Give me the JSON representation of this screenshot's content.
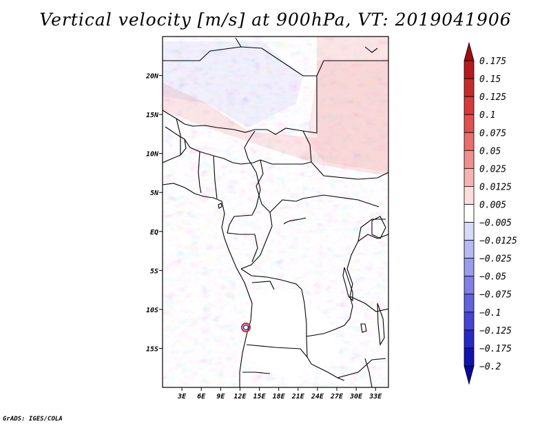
{
  "title": "Vertical velocity [m/s] at 900hPa, VT: 2019041906",
  "credit": "GrADS: IGES/COLA",
  "chart_data": {
    "type": "heatmap",
    "title": "Vertical velocity [m/s] at 900hPa, VT: 2019041906",
    "variable": "Vertical velocity",
    "units": "m/s",
    "level": "900hPa",
    "valid_time": "2019041906",
    "x_range": [
      0,
      35
    ],
    "y_range": [
      -20,
      25
    ],
    "x_ticks": [
      {
        "value": 3,
        "label": "3E"
      },
      {
        "value": 6,
        "label": "6E"
      },
      {
        "value": 9,
        "label": "9E"
      },
      {
        "value": 12,
        "label": "12E"
      },
      {
        "value": 15,
        "label": "15E"
      },
      {
        "value": 18,
        "label": "18E"
      },
      {
        "value": 21,
        "label": "21E"
      },
      {
        "value": 24,
        "label": "24E"
      },
      {
        "value": 27,
        "label": "27E"
      },
      {
        "value": 30,
        "label": "30E"
      },
      {
        "value": 33,
        "label": "33E"
      }
    ],
    "y_ticks": [
      {
        "value": 20,
        "label": "20N"
      },
      {
        "value": 15,
        "label": "15N"
      },
      {
        "value": 10,
        "label": "10N"
      },
      {
        "value": 5,
        "label": "5N"
      },
      {
        "value": 0,
        "label": "EQ"
      },
      {
        "value": -5,
        "label": "5S"
      },
      {
        "value": -10,
        "label": "10S"
      },
      {
        "value": -15,
        "label": "15S"
      }
    ],
    "colorbar": {
      "levels": [
        "0.175",
        "0.15",
        "0.125",
        "0.1",
        "0.075",
        "0.05",
        "0.025",
        "0.0125",
        "0.005",
        "−0.005",
        "−0.0125",
        "−0.025",
        "−0.05",
        "−0.075",
        "−0.1",
        "−0.125",
        "−0.175",
        "−0.2"
      ],
      "colors": [
        "#a00d12",
        "#b31b1e",
        "#c62b2b",
        "#d43a3a",
        "#e05050",
        "#e86d6d",
        "#f08f8f",
        "#f6b3b3",
        "#fcdcdc",
        "#ffffff",
        "#d8d8f8",
        "#b8b8f2",
        "#9c9cec",
        "#7f7fe5",
        "#6262dc",
        "#4545d1",
        "#2828c4",
        "#1313b0",
        "#08089a"
      ]
    }
  }
}
